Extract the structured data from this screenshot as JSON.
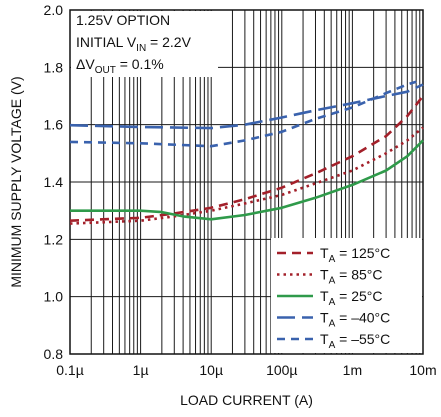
{
  "chart_data": {
    "type": "line",
    "xscale": "log",
    "xlabel": "LOAD CURRENT (A)",
    "ylabel": "MINIMUM SUPPLY VOLTAGE (V)",
    "xlim": [
      1e-07,
      0.01
    ],
    "ylim": [
      0.8,
      2.0
    ],
    "grid": true,
    "legend_position": "bottom-right",
    "annotation": {
      "line1": "1.25V OPTION",
      "line2_prefix": "INITIAL V",
      "line2_sub": "IN",
      "line2_suffix": " = 2.2V",
      "line3_prefix": "ΔV",
      "line3_sub": "OUT",
      "line3_suffix": " = 0.1%"
    },
    "x_ticks": [
      {
        "value": 1e-07,
        "label": "0.1µ"
      },
      {
        "value": 1e-06,
        "label": "1µ"
      },
      {
        "value": 1e-05,
        "label": "10µ"
      },
      {
        "value": 0.0001,
        "label": "100µ"
      },
      {
        "value": 0.001,
        "label": "1m"
      },
      {
        "value": 0.01,
        "label": "10m"
      }
    ],
    "y_ticks": [
      {
        "value": 0.8,
        "label": "0.8"
      },
      {
        "value": 1.0,
        "label": "1.0"
      },
      {
        "value": 1.2,
        "label": "1.2"
      },
      {
        "value": 1.4,
        "label": "1.4"
      },
      {
        "value": 1.6,
        "label": "1.6"
      },
      {
        "value": 1.8,
        "label": "1.8"
      },
      {
        "value": 2.0,
        "label": "2.0"
      }
    ],
    "series": [
      {
        "name_prefix": "T",
        "name_sub": "A",
        "name_suffix": " = 125°C",
        "color": "#a3202a",
        "dash": "9,6",
        "points": [
          [
            1e-07,
            1.265
          ],
          [
            1e-06,
            1.275
          ],
          [
            3e-06,
            1.29
          ],
          [
            1e-05,
            1.31
          ],
          [
            3e-05,
            1.34
          ],
          [
            0.0001,
            1.38
          ],
          [
            0.0003,
            1.43
          ],
          [
            0.001,
            1.49
          ],
          [
            0.003,
            1.56
          ],
          [
            0.006,
            1.63
          ],
          [
            0.01,
            1.7
          ]
        ]
      },
      {
        "name_prefix": "T",
        "name_sub": "A",
        "name_suffix": " = 85°C",
        "color": "#a3202a",
        "dash": "2.5,4",
        "points": [
          [
            1e-07,
            1.255
          ],
          [
            1e-06,
            1.265
          ],
          [
            3e-06,
            1.28
          ],
          [
            1e-05,
            1.3
          ],
          [
            3e-05,
            1.325
          ],
          [
            0.0001,
            1.355
          ],
          [
            0.0003,
            1.395
          ],
          [
            0.001,
            1.44
          ],
          [
            0.003,
            1.5
          ],
          [
            0.006,
            1.545
          ],
          [
            0.01,
            1.59
          ]
        ]
      },
      {
        "name_prefix": "T",
        "name_sub": "A",
        "name_suffix": " = 25°C",
        "color": "#2f9a4a",
        "dash": "",
        "points": [
          [
            1e-07,
            1.3
          ],
          [
            1e-06,
            1.3
          ],
          [
            2e-06,
            1.295
          ],
          [
            4e-06,
            1.28
          ],
          [
            1e-05,
            1.27
          ],
          [
            3e-05,
            1.285
          ],
          [
            0.0001,
            1.31
          ],
          [
            0.0003,
            1.345
          ],
          [
            0.001,
            1.39
          ],
          [
            0.003,
            1.44
          ],
          [
            0.006,
            1.49
          ],
          [
            0.01,
            1.545
          ]
        ]
      },
      {
        "name_prefix": "T",
        "name_sub": "A",
        "name_suffix": " = –40°C",
        "color": "#3a62ad",
        "dash": "18,7",
        "points": [
          [
            1e-07,
            1.598
          ],
          [
            1e-06,
            1.592
          ],
          [
            1e-05,
            1.588
          ],
          [
            3e-05,
            1.6
          ],
          [
            0.0001,
            1.625
          ],
          [
            0.0003,
            1.65
          ],
          [
            0.001,
            1.675
          ],
          [
            0.003,
            1.7
          ],
          [
            0.006,
            1.715
          ],
          [
            0.01,
            1.74
          ]
        ]
      },
      {
        "name_prefix": "T",
        "name_sub": "A",
        "name_suffix": " = –55°C",
        "color": "#3a62ad",
        "dash": "8,6",
        "points": [
          [
            1e-07,
            1.54
          ],
          [
            1e-06,
            1.535
          ],
          [
            1e-05,
            1.525
          ],
          [
            3e-05,
            1.545
          ],
          [
            0.0001,
            1.575
          ],
          [
            0.0003,
            1.62
          ],
          [
            0.001,
            1.66
          ],
          [
            0.003,
            1.71
          ],
          [
            0.006,
            1.74
          ],
          [
            0.008,
            1.75
          ]
        ]
      }
    ]
  }
}
